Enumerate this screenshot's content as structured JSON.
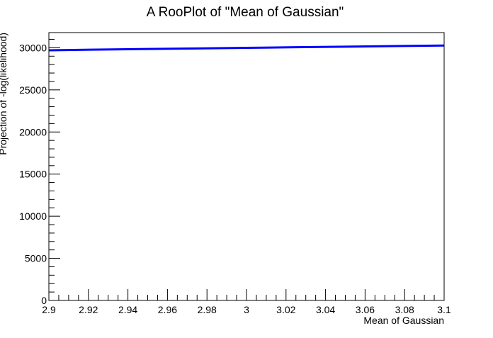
{
  "chart_data": {
    "type": "line",
    "title": "A RooPlot of \"Mean of Gaussian\"",
    "xlabel": "Mean of Gaussian",
    "ylabel": "Projection of -log(likelihood)",
    "xlim": [
      2.9,
      3.1
    ],
    "ylim": [
      0,
      31800
    ],
    "x_ticks": [
      2.9,
      2.92,
      2.94,
      2.96,
      2.98,
      3.0,
      3.02,
      3.04,
      3.06,
      3.08,
      3.1
    ],
    "x_tick_labels": [
      "2.9",
      "2.92",
      "2.94",
      "2.96",
      "2.98",
      "3",
      "3.02",
      "3.04",
      "3.06",
      "3.08",
      "3.1"
    ],
    "y_ticks": [
      0,
      5000,
      10000,
      15000,
      20000,
      25000,
      30000
    ],
    "y_tick_labels": [
      "0",
      "5000",
      "10000",
      "15000",
      "20000",
      "25000",
      "30000"
    ],
    "grid": false,
    "series": [
      {
        "color": "#0000ff",
        "x": [
          2.9,
          2.925,
          2.95,
          2.975,
          3.0,
          3.025,
          3.05,
          3.075,
          3.1
        ],
        "y": [
          29700,
          29780,
          29850,
          29920,
          29990,
          30060,
          30130,
          30200,
          30270
        ]
      }
    ]
  }
}
